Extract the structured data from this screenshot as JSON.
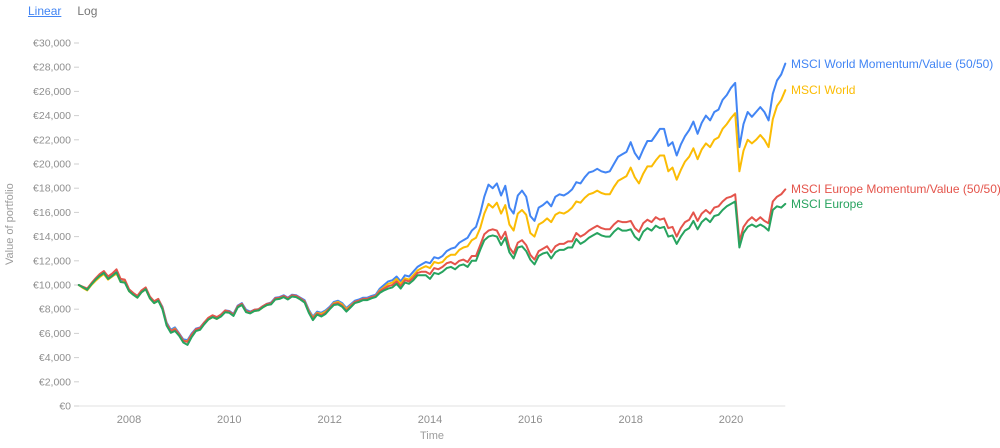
{
  "controls": {
    "linear_label": "Linear",
    "log_label": "Log",
    "active_scale": "Linear",
    "link_color": "#4285f4",
    "inactive_color": "#757575"
  },
  "chart_data": {
    "type": "line",
    "title": "",
    "xlabel": "Time",
    "ylabel": "Value of portfolio",
    "currency": "EUR",
    "x_unit": "decimal years, monthly points",
    "x_start": 2007.0,
    "x_step": 0.0833333,
    "xlim": [
      2007.0,
      2021.09
    ],
    "ylim": [
      0,
      30000
    ],
    "grid": false,
    "legend_position": "colored text labels at right ends of lines",
    "y_ticks": [
      {
        "v": 0,
        "label": "€0"
      },
      {
        "v": 2000,
        "label": "€2,000"
      },
      {
        "v": 4000,
        "label": "€4,000"
      },
      {
        "v": 6000,
        "label": "€6,000"
      },
      {
        "v": 8000,
        "label": "€8,000"
      },
      {
        "v": 10000,
        "label": "€10,000"
      },
      {
        "v": 12000,
        "label": "€12,000"
      },
      {
        "v": 14000,
        "label": "€14,000"
      },
      {
        "v": 16000,
        "label": "€16,000"
      },
      {
        "v": 18000,
        "label": "€18,000"
      },
      {
        "v": 20000,
        "label": "€20,000"
      },
      {
        "v": 22000,
        "label": "€22,000"
      },
      {
        "v": 24000,
        "label": "€24,000"
      },
      {
        "v": 26000,
        "label": "€26,000"
      },
      {
        "v": 28000,
        "label": "€28,000"
      },
      {
        "v": 30000,
        "label": "€30,000"
      }
    ],
    "x_ticks": [
      {
        "v": 2008,
        "label": "2008"
      },
      {
        "v": 2010,
        "label": "2010"
      },
      {
        "v": 2012,
        "label": "2012"
      },
      {
        "v": 2014,
        "label": "2014"
      },
      {
        "v": 2016,
        "label": "2016"
      },
      {
        "v": 2018,
        "label": "2018"
      },
      {
        "v": 2020,
        "label": "2020"
      }
    ],
    "series": [
      {
        "name": "MSCI World Momentum/Value (50/50)",
        "color": "#4285f4",
        "values": [
          10000,
          9800,
          9600,
          10050,
          10400,
          10700,
          11000,
          10550,
          10800,
          11050,
          10350,
          10400,
          9600,
          9300,
          9050,
          9500,
          9750,
          9000,
          8600,
          8800,
          8200,
          6900,
          6300,
          6500,
          6000,
          5500,
          5450,
          6000,
          6400,
          6500,
          6900,
          7250,
          7450,
          7300,
          7550,
          7900,
          7850,
          7600,
          8300,
          8500,
          7950,
          7800,
          7950,
          8000,
          8250,
          8450,
          8550,
          8950,
          9000,
          9150,
          8950,
          9200,
          9150,
          8950,
          8750,
          7950,
          7400,
          7800,
          7700,
          7900,
          8200,
          8600,
          8700,
          8500,
          8100,
          8400,
          8700,
          8800,
          8950,
          8950,
          9100,
          9200,
          9700,
          10000,
          10300,
          10400,
          10700,
          10300,
          10800,
          10700,
          11100,
          11500,
          11700,
          11900,
          11800,
          12300,
          12200,
          12400,
          12800,
          13000,
          13100,
          13500,
          13700,
          13900,
          14500,
          14800,
          15900,
          17300,
          18300,
          18000,
          18400,
          17400,
          18200,
          16400,
          15900,
          17400,
          17800,
          17300,
          15700,
          15300,
          16400,
          16600,
          16900,
          16500,
          17300,
          17500,
          17400,
          17600,
          17900,
          18500,
          18400,
          18900,
          19300,
          19400,
          19600,
          19400,
          19300,
          19400,
          20000,
          20600,
          20800,
          21000,
          21800,
          20900,
          20400,
          21200,
          21900,
          21900,
          22400,
          22900,
          22900,
          21500,
          21800,
          20700,
          21600,
          22300,
          22800,
          23500,
          22500,
          23400,
          24000,
          23600,
          24300,
          24500,
          25300,
          25700,
          26300,
          26700,
          21400,
          23300,
          24300,
          23900,
          24300,
          24700,
          24300,
          23600,
          25800,
          26900,
          27400,
          28300
        ]
      },
      {
        "name": "MSCI World",
        "color": "#fbbc04",
        "values": [
          10000,
          9750,
          9550,
          10000,
          10350,
          10650,
          10900,
          10450,
          10700,
          10950,
          10250,
          10300,
          9500,
          9200,
          8950,
          9400,
          9650,
          8900,
          8500,
          8700,
          8100,
          6800,
          6200,
          6400,
          5900,
          5400,
          5350,
          5900,
          6300,
          6400,
          6800,
          7150,
          7350,
          7200,
          7450,
          7800,
          7750,
          7500,
          8200,
          8400,
          7850,
          7700,
          7850,
          7900,
          8150,
          8350,
          8450,
          8850,
          8900,
          9050,
          8850,
          9100,
          9050,
          8850,
          8650,
          7850,
          7300,
          7700,
          7600,
          7800,
          8100,
          8500,
          8600,
          8400,
          8000,
          8300,
          8600,
          8700,
          8850,
          8850,
          9000,
          9100,
          9550,
          9800,
          10100,
          10200,
          10500,
          10100,
          10550,
          10450,
          10800,
          11200,
          11400,
          11550,
          11400,
          11900,
          11800,
          11900,
          12300,
          12500,
          12500,
          12900,
          13100,
          13200,
          13700,
          13900,
          14700,
          15900,
          16700,
          16400,
          16800,
          15900,
          16600,
          15000,
          14500,
          15900,
          16200,
          15800,
          14300,
          14000,
          15000,
          15200,
          15500,
          15200,
          15800,
          16000,
          15900,
          16100,
          16400,
          16900,
          16800,
          17200,
          17500,
          17600,
          17800,
          17600,
          17500,
          17500,
          18100,
          18600,
          18800,
          19000,
          19700,
          18900,
          18400,
          19200,
          19800,
          19800,
          20300,
          20700,
          20700,
          19400,
          19700,
          18700,
          19500,
          20200,
          20600,
          21300,
          20400,
          21200,
          21700,
          21400,
          22000,
          22200,
          22900,
          23300,
          23800,
          24200,
          19400,
          21100,
          22000,
          21700,
          22000,
          22400,
          22000,
          21400,
          23700,
          24800,
          25300,
          26100
        ]
      },
      {
        "name": "MSCI Europe Momentum/Value (50/50)",
        "color": "#e4544b",
        "values": [
          10000,
          9850,
          9700,
          10150,
          10550,
          10900,
          11150,
          10700,
          10950,
          11300,
          10500,
          10450,
          9650,
          9350,
          9100,
          9550,
          9800,
          9050,
          8650,
          8850,
          8150,
          6800,
          6200,
          6350,
          5950,
          5400,
          5300,
          5900,
          6350,
          6450,
          6900,
          7300,
          7500,
          7350,
          7550,
          7900,
          7800,
          7550,
          8250,
          8450,
          7850,
          7750,
          7950,
          8000,
          8250,
          8450,
          8500,
          8900,
          8950,
          9100,
          8900,
          9150,
          9100,
          8900,
          8650,
          7800,
          7250,
          7650,
          7500,
          7700,
          8100,
          8450,
          8500,
          8300,
          7900,
          8250,
          8600,
          8700,
          8850,
          8850,
          9000,
          9100,
          9500,
          9700,
          9900,
          10000,
          10300,
          9900,
          10400,
          10300,
          10600,
          11000,
          11100,
          11100,
          10900,
          11400,
          11300,
          11500,
          11800,
          11900,
          11700,
          12000,
          12100,
          11900,
          12400,
          12400,
          13300,
          14200,
          14500,
          14600,
          14500,
          13800,
          14400,
          13100,
          12600,
          13500,
          13700,
          13300,
          12500,
          12100,
          12800,
          13000,
          13200,
          12700,
          13200,
          13400,
          13400,
          13600,
          13600,
          14300,
          14000,
          14200,
          14500,
          14700,
          14900,
          14700,
          14600,
          14600,
          15000,
          15300,
          15200,
          15200,
          15300,
          14700,
          14400,
          15100,
          15400,
          15200,
          15600,
          15400,
          15500,
          14700,
          14800,
          14000,
          14700,
          15200,
          15400,
          16000,
          15300,
          15900,
          16200,
          15900,
          16400,
          16500,
          16900,
          17200,
          17300,
          17500,
          13600,
          14800,
          15300,
          15600,
          15300,
          15600,
          15300,
          15100,
          16900,
          17300,
          17500,
          17900
        ]
      },
      {
        "name": "MSCI Europe",
        "color": "#27a35f",
        "values": [
          10000,
          9800,
          9600,
          10050,
          10450,
          10750,
          11000,
          10500,
          10750,
          11050,
          10250,
          10200,
          9500,
          9200,
          8950,
          9400,
          9650,
          8900,
          8500,
          8700,
          8000,
          6650,
          6050,
          6200,
          5800,
          5250,
          5050,
          5700,
          6200,
          6300,
          6750,
          7150,
          7350,
          7200,
          7400,
          7750,
          7700,
          7450,
          8150,
          8350,
          7750,
          7650,
          7850,
          7900,
          8150,
          8350,
          8400,
          8800,
          8850,
          9000,
          8800,
          9050,
          9000,
          8800,
          8550,
          7700,
          7100,
          7550,
          7400,
          7600,
          8000,
          8350,
          8400,
          8200,
          7800,
          8150,
          8500,
          8600,
          8750,
          8750,
          8900,
          9000,
          9350,
          9550,
          9700,
          9800,
          10100,
          9700,
          10200,
          10100,
          10400,
          10800,
          10800,
          10800,
          10500,
          11000,
          10900,
          11100,
          11400,
          11500,
          11300,
          11600,
          11700,
          11500,
          12000,
          12000,
          12900,
          13700,
          14000,
          14100,
          14000,
          13300,
          13900,
          12700,
          12200,
          13100,
          13200,
          12800,
          12100,
          11700,
          12400,
          12600,
          12700,
          12200,
          12700,
          12900,
          12900,
          13100,
          13100,
          13800,
          13400,
          13600,
          13900,
          14100,
          14300,
          14100,
          14000,
          14000,
          14400,
          14700,
          14500,
          14500,
          14600,
          14000,
          13700,
          14400,
          14700,
          14500,
          14900,
          14700,
          14800,
          14000,
          14100,
          13400,
          14000,
          14500,
          14700,
          15300,
          14600,
          15200,
          15500,
          15200,
          15700,
          15800,
          16200,
          16500,
          16700,
          16900,
          13100,
          14300,
          14800,
          15000,
          14800,
          15000,
          14800,
          14500,
          16200,
          16500,
          16400,
          16700
        ]
      }
    ]
  }
}
